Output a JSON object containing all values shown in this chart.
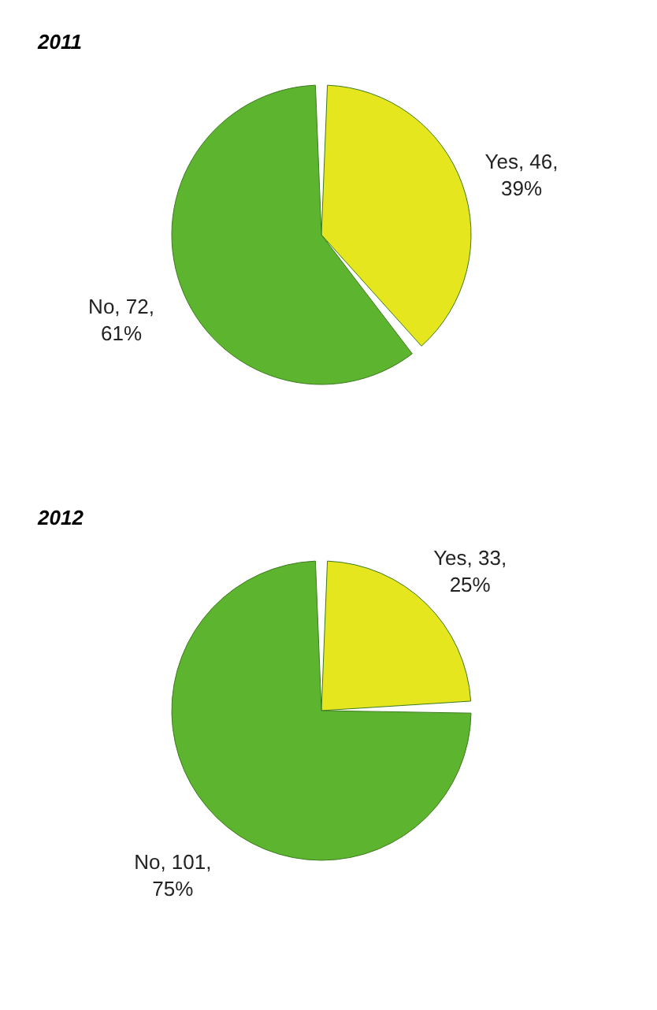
{
  "chart_data": [
    {
      "type": "pie",
      "title": "2011",
      "categories": [
        "Yes",
        "No"
      ],
      "values": [
        46,
        72
      ],
      "colors": [
        "#e6e61e",
        "#5db52f"
      ],
      "value_labels": [
        "46, 39%",
        "72, 61%"
      ],
      "legend": false
    },
    {
      "type": "pie",
      "title": "2012",
      "categories": [
        "Yes",
        "No"
      ],
      "values": [
        33,
        101
      ],
      "colors": [
        "#e6e61e",
        "#5db52f"
      ],
      "value_labels": [
        "33, 25%",
        "101, 75%"
      ],
      "legend": false
    }
  ]
}
